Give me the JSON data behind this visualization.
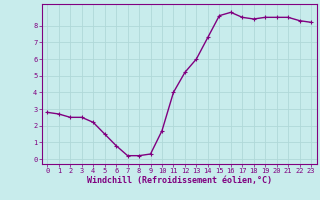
{
  "x": [
    0,
    1,
    2,
    3,
    4,
    5,
    6,
    7,
    8,
    9,
    10,
    11,
    12,
    13,
    14,
    15,
    16,
    17,
    18,
    19,
    20,
    21,
    22,
    23
  ],
  "y": [
    2.8,
    2.7,
    2.5,
    2.5,
    2.2,
    1.5,
    0.8,
    0.2,
    0.2,
    0.3,
    1.7,
    4.0,
    5.2,
    6.0,
    7.3,
    8.6,
    8.8,
    8.5,
    8.4,
    8.5,
    8.5,
    8.5,
    8.3,
    8.2
  ],
  "line_color": "#800080",
  "marker": "+",
  "marker_size": 3,
  "bg_color": "#c8ecec",
  "grid_color": "#b0d8d8",
  "xlabel": "Windchill (Refroidissement éolien,°C)",
  "xlim": [
    -0.5,
    23.5
  ],
  "ylim": [
    -0.3,
    9.3
  ],
  "yticks": [
    0,
    1,
    2,
    3,
    4,
    5,
    6,
    7,
    8
  ],
  "xticks": [
    0,
    1,
    2,
    3,
    4,
    5,
    6,
    7,
    8,
    9,
    10,
    11,
    12,
    13,
    14,
    15,
    16,
    17,
    18,
    19,
    20,
    21,
    22,
    23
  ],
  "tick_label_color": "#800080",
  "xlabel_color": "#800080",
  "spine_color": "#800080",
  "tick_fontsize": 5.0,
  "xlabel_fontsize": 6.0,
  "line_width": 1.0,
  "marker_color": "#800080"
}
